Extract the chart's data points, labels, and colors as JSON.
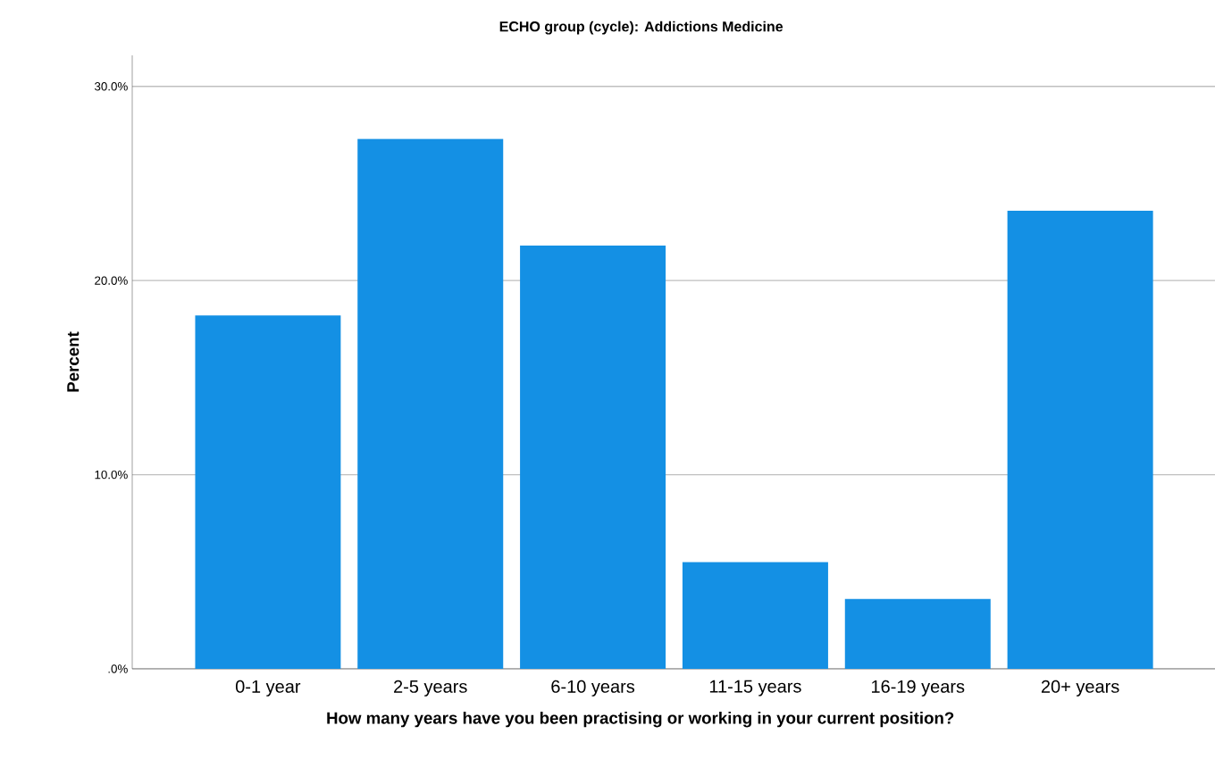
{
  "chart_data": {
    "type": "bar",
    "title": "ECHO group (cycle): Addictions Medicine",
    "xlabel": "How many years have you been practising or working in your current position?",
    "ylabel": "Percent",
    "categories": [
      "0-1 year",
      "2-5 years",
      "6-10 years",
      "11-15 years",
      "16-19 years",
      "20+ years"
    ],
    "values": [
      18.2,
      27.3,
      21.8,
      5.5,
      3.6,
      23.6
    ],
    "color": "#1490e4",
    "ylim": [
      0,
      31.6
    ],
    "yticks": [
      {
        "value": 0,
        "label": ".0%"
      },
      {
        "value": 10,
        "label": "10.0%"
      },
      {
        "value": 20,
        "label": "20.0%"
      },
      {
        "value": 30,
        "label": "30.0%"
      }
    ],
    "grid": "y"
  }
}
